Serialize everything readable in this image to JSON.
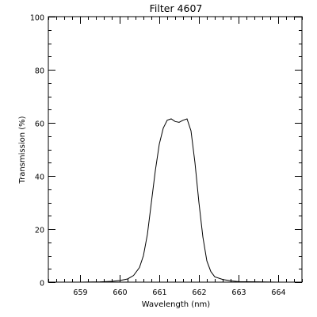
{
  "chart_data": {
    "type": "line",
    "title": "Filter 4607",
    "xlabel": "Wavelength (nm)",
    "ylabel": "Transmission (%)",
    "xlim": [
      658.2,
      664.6
    ],
    "ylim": [
      0,
      100
    ],
    "xticks": [
      659,
      660,
      661,
      662,
      663,
      664
    ],
    "yticks": [
      0,
      20,
      40,
      60,
      80,
      100
    ],
    "xtick_labels": [
      "659",
      "660",
      "661",
      "662",
      "663",
      "664"
    ],
    "ytick_labels": [
      "0",
      "20",
      "40",
      "60",
      "80",
      "100"
    ],
    "x_minor_step": 0.2,
    "y_minor_step": 5,
    "grid": false,
    "series": [
      {
        "x": [
          658.2,
          659.0,
          659.5,
          659.8,
          660.0,
          660.2,
          660.35,
          660.5,
          660.6,
          660.7,
          660.8,
          660.9,
          661.0,
          661.1,
          661.2,
          661.3,
          661.4,
          661.5,
          661.6,
          661.7,
          661.8,
          661.9,
          662.0,
          662.1,
          662.2,
          662.3,
          662.4,
          662.6,
          662.8,
          663.0,
          663.5,
          664.0,
          664.6
        ],
        "y": [
          0,
          0,
          0.1,
          0.3,
          0.6,
          1.2,
          2.5,
          5.5,
          10,
          18,
          30,
          42,
          52,
          58,
          61,
          61.5,
          60.5,
          60.2,
          61,
          61.5,
          57,
          45,
          30,
          17,
          8,
          4,
          2,
          1,
          0.5,
          0.2,
          0.1,
          0,
          0
        ]
      }
    ]
  }
}
